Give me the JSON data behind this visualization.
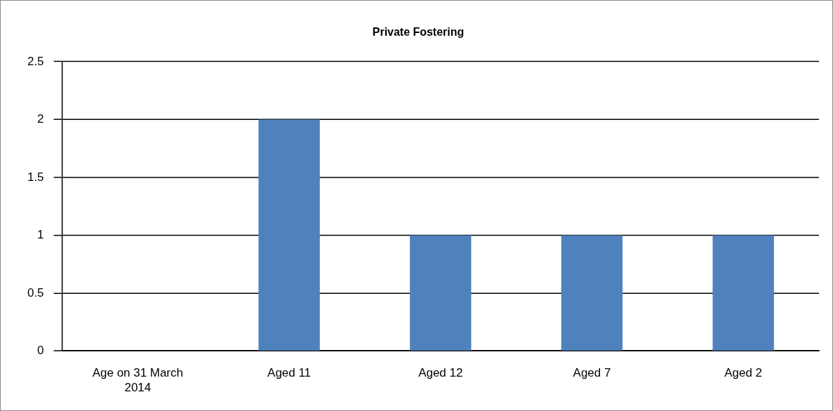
{
  "chart_data": {
    "type": "bar",
    "title": "Private Fostering",
    "categories": [
      "Age on 31 March 2014",
      "Aged 11",
      "Aged 12",
      "Aged 7",
      "Aged 2"
    ],
    "values": [
      null,
      2,
      1,
      1,
      1
    ],
    "color": "#4f81bd",
    "ylim": [
      0,
      2.5
    ],
    "yticks": [
      0,
      0.5,
      1,
      1.5,
      2,
      2.5
    ],
    "grid": "y"
  }
}
